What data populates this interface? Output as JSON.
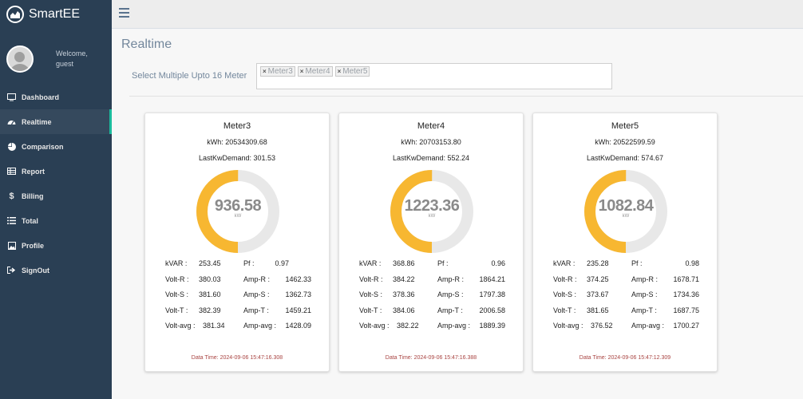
{
  "app": {
    "name": "SmartEE",
    "logo_icon": "chart-area-icon"
  },
  "profile": {
    "welcome": "Welcome,",
    "user": "guest"
  },
  "sidebar": {
    "items": [
      {
        "label": "Dashboard",
        "icon": "monitor-icon",
        "active": false
      },
      {
        "label": "Realtime",
        "icon": "tachometer-icon",
        "active": true
      },
      {
        "label": "Comparison",
        "icon": "pie-chart-icon",
        "active": false
      },
      {
        "label": "Report",
        "icon": "table-icon",
        "active": false
      },
      {
        "label": "Billing",
        "icon": "dollar-icon",
        "active": false
      },
      {
        "label": "Total",
        "icon": "list-icon",
        "active": false
      },
      {
        "label": "Profile",
        "icon": "image-icon",
        "active": false
      },
      {
        "label": "SignOut",
        "icon": "sign-out-icon",
        "active": false
      }
    ]
  },
  "page": {
    "title": "Realtime",
    "selector_label": "Select Multiple Upto 16 Meter",
    "selected_tags": [
      "Meter3",
      "Meter4",
      "Meter5"
    ]
  },
  "colors": {
    "gauge_fill": "#f7b731",
    "gauge_track": "#e8e8e8",
    "sidebar_bg": "#2a3f54",
    "active_marker": "#1abb9c",
    "datetime_text": "#a94442"
  },
  "labels": {
    "kvar": "kVAR :",
    "pf": "Pf :",
    "volt_r": "Volt-R :",
    "amp_r": "Amp-R :",
    "volt_s": "Volt-S :",
    "amp_s": "Amp-S :",
    "volt_t": "Volt-T :",
    "amp_t": "Amp-T :",
    "volt_avg": "Volt-avg :",
    "amp_avg": "Amp-avg :",
    "gauge_unit": "kW"
  },
  "meters": [
    {
      "name": "Meter3",
      "kwh": "kWh: 20534309.68",
      "demand": "LastKwDemand: 301.53",
      "gauge_value": "936.58",
      "gauge_fraction": 0.5,
      "kvar": "253.45",
      "pf": "0.97",
      "volt_r": "380.03",
      "amp_r": "1462.33",
      "volt_s": "381.60",
      "amp_s": "1362.73",
      "volt_t": "382.39",
      "amp_t": "1459.21",
      "volt_avg": "381.34",
      "amp_avg": "1428.09",
      "datetime": "Data Time: 2024-09-06 15:47:16.308"
    },
    {
      "name": "Meter4",
      "kwh": "kWh: 20703153.80",
      "demand": "LastKwDemand: 552.24",
      "gauge_value": "1223.36",
      "gauge_fraction": 0.5,
      "kvar": "368.86",
      "pf": "0.96",
      "volt_r": "384.22",
      "amp_r": "1864.21",
      "volt_s": "378.36",
      "amp_s": "1797.38",
      "volt_t": "384.06",
      "amp_t": "2006.58",
      "volt_avg": "382.22",
      "amp_avg": "1889.39",
      "datetime": "Data Time: 2024-09-06 15:47:16.388"
    },
    {
      "name": "Meter5",
      "kwh": "kWh: 20522599.59",
      "demand": "LastKwDemand: 574.67",
      "gauge_value": "1082.84",
      "gauge_fraction": 0.5,
      "kvar": "235.28",
      "pf": "0.98",
      "volt_r": "374.25",
      "amp_r": "1678.71",
      "volt_s": "373.67",
      "amp_s": "1734.36",
      "volt_t": "381.65",
      "amp_t": "1687.75",
      "volt_avg": "376.52",
      "amp_avg": "1700.27",
      "datetime": "Data Time: 2024-09-06 15:47:12.309"
    }
  ]
}
